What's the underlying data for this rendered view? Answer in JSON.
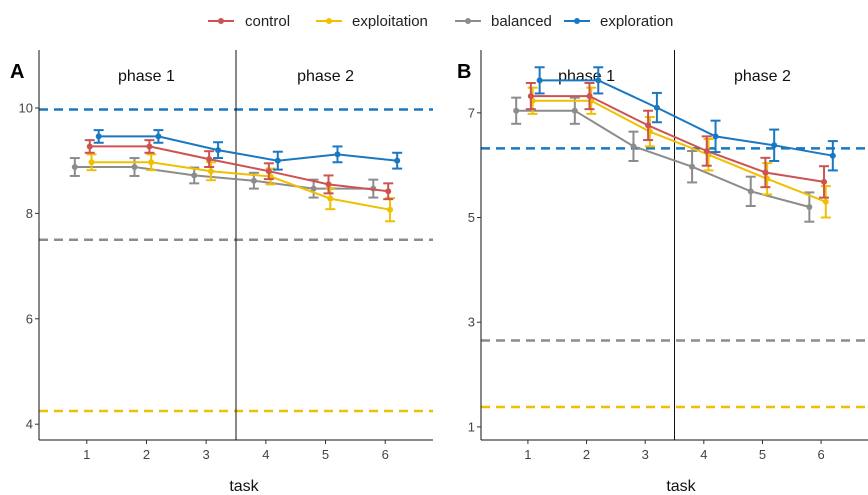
{
  "colors": {
    "control": "#cd5353",
    "exploitation": "#f0c000",
    "balanced": "#8c8c8c",
    "exploration": "#1a78c2"
  },
  "legend": {
    "position": "top",
    "items": [
      {
        "key": "control",
        "label": "control"
      },
      {
        "key": "exploitation",
        "label": "exploitation"
      },
      {
        "key": "balanced",
        "label": "balanced"
      },
      {
        "key": "exploration",
        "label": "exploration"
      }
    ]
  },
  "chart_data": [
    {
      "type": "line",
      "panel_label": "A",
      "xlabel": "task",
      "ylabel": "",
      "x": [
        1,
        2,
        3,
        4,
        5,
        6
      ],
      "xlim": [
        0.2,
        6.8
      ],
      "ylim": [
        3.7,
        11.1
      ],
      "yticks": [
        4,
        6,
        8,
        10
      ],
      "phase_divider_x": 3.5,
      "phase_labels": [
        {
          "text": "phase 1",
          "x": 2
        },
        {
          "text": "phase 2",
          "x": 5
        }
      ],
      "reference_lines": [
        {
          "series": "exploration",
          "y": 9.97
        },
        {
          "series": "balanced",
          "y": 7.5
        },
        {
          "series": "exploitation",
          "y": 4.25
        }
      ],
      "series": [
        {
          "name": "control",
          "x_offset": 0.05,
          "values": [
            9.27,
            9.27,
            9.03,
            8.8,
            8.55,
            8.42
          ],
          "errors": [
            0.12,
            0.12,
            0.15,
            0.15,
            0.17,
            0.15
          ]
        },
        {
          "name": "exploitation",
          "x_offset": 0.08,
          "values": [
            8.97,
            8.97,
            8.8,
            8.7,
            8.28,
            8.07
          ],
          "errors": [
            0.15,
            0.15,
            0.17,
            0.15,
            0.2,
            0.22
          ]
        },
        {
          "name": "balanced",
          "x_offset": -0.2,
          "values": [
            8.88,
            8.88,
            8.72,
            8.62,
            8.47,
            8.47
          ],
          "errors": [
            0.17,
            0.17,
            0.15,
            0.15,
            0.17,
            0.17
          ]
        },
        {
          "name": "exploration",
          "x_offset": 0.2,
          "values": [
            9.46,
            9.46,
            9.2,
            9.0,
            9.12,
            9.0
          ],
          "errors": [
            0.12,
            0.12,
            0.15,
            0.17,
            0.15,
            0.15
          ]
        }
      ]
    },
    {
      "type": "line",
      "panel_label": "B",
      "xlabel": "task",
      "ylabel": "",
      "x": [
        1,
        2,
        3,
        4,
        5,
        6
      ],
      "xlim": [
        0.2,
        6.8
      ],
      "ylim": [
        0.75,
        8.2
      ],
      "yticks": [
        1,
        3,
        5,
        7
      ],
      "phase_divider_x": 3.5,
      "phase_labels": [
        {
          "text": "phase 1",
          "x": 2
        },
        {
          "text": "phase 2",
          "x": 5
        }
      ],
      "reference_lines": [
        {
          "series": "exploration",
          "y": 6.32
        },
        {
          "series": "balanced",
          "y": 2.65
        },
        {
          "series": "exploitation",
          "y": 1.38
        }
      ],
      "series": [
        {
          "name": "control",
          "x_offset": 0.05,
          "values": [
            7.32,
            7.32,
            6.76,
            6.27,
            5.86,
            5.68
          ],
          "errors": [
            0.25,
            0.25,
            0.28,
            0.28,
            0.28,
            0.3
          ]
        },
        {
          "name": "exploitation",
          "x_offset": 0.08,
          "values": [
            7.23,
            7.23,
            6.64,
            6.2,
            5.74,
            5.3
          ],
          "errors": [
            0.25,
            0.25,
            0.28,
            0.3,
            0.3,
            0.3
          ]
        },
        {
          "name": "balanced",
          "x_offset": -0.2,
          "values": [
            7.04,
            7.04,
            6.36,
            5.97,
            5.5,
            5.2
          ],
          "errors": [
            0.25,
            0.25,
            0.28,
            0.3,
            0.28,
            0.28
          ]
        },
        {
          "name": "exploration",
          "x_offset": 0.2,
          "values": [
            7.62,
            7.62,
            7.1,
            6.55,
            6.38,
            6.18
          ],
          "errors": [
            0.25,
            0.25,
            0.28,
            0.3,
            0.3,
            0.28
          ]
        }
      ]
    }
  ]
}
